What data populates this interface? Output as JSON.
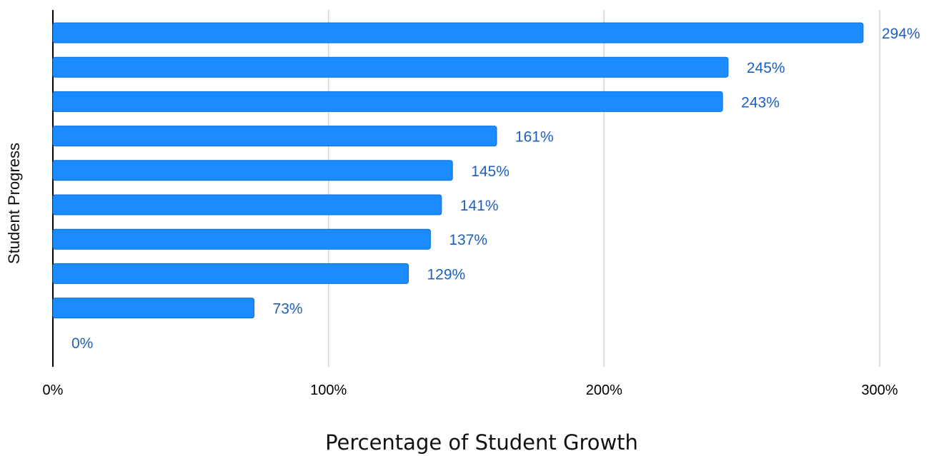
{
  "chart_data": {
    "type": "bar",
    "orientation": "horizontal",
    "title": "",
    "xlabel": "Percentage of Student Growth",
    "ylabel": "Student Progress",
    "xlim": [
      0,
      300
    ],
    "x_ticks": [
      "0%",
      "100%",
      "200%",
      "300%"
    ],
    "x_tick_values": [
      0,
      100,
      200,
      300
    ],
    "grid": "vertical",
    "legend": "none",
    "bar_color": "#1a8cff",
    "label_color": "#1f5fbf",
    "values": [
      294,
      245,
      243,
      161,
      145,
      141,
      137,
      129,
      73,
      0
    ],
    "value_labels": [
      "294%",
      "245%",
      "243%",
      "161%",
      "145%",
      "141%",
      "137%",
      "129%",
      "73%",
      "0%"
    ]
  }
}
